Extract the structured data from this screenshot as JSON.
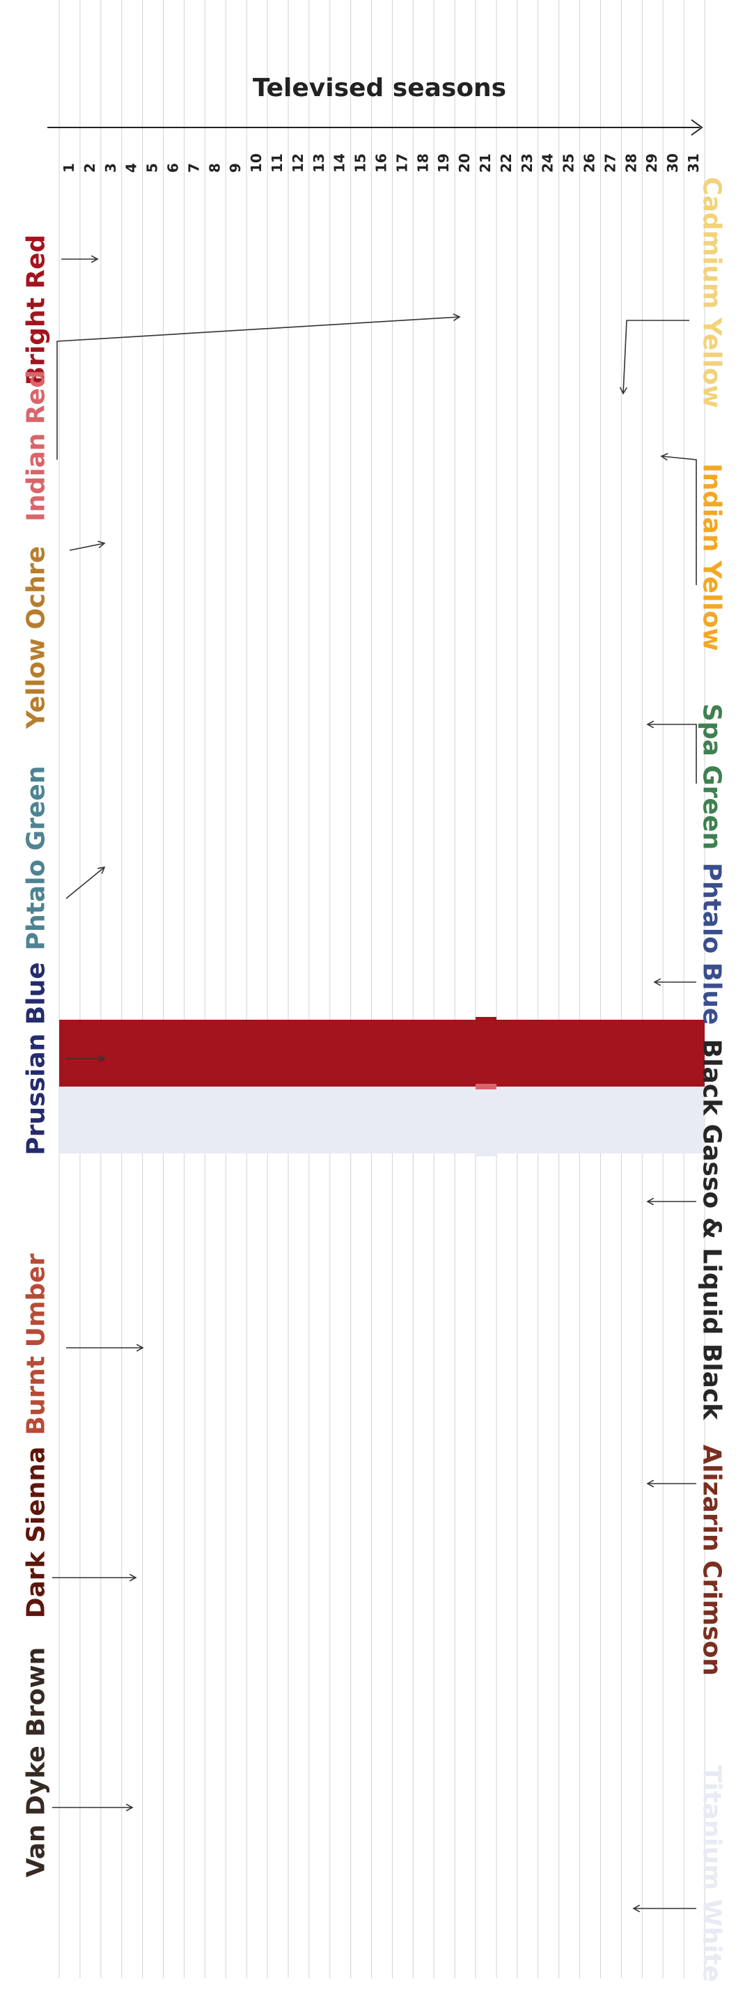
{
  "chart_data": {
    "type": "area",
    "title": "Televised seasons",
    "x": [
      1,
      2,
      3,
      4,
      5,
      6,
      7,
      8,
      9,
      10,
      11,
      12,
      13,
      14,
      15,
      16,
      17,
      18,
      19,
      20,
      21,
      22,
      23,
      24,
      25,
      26,
      27,
      28,
      29,
      30,
      31
    ],
    "series": [
      {
        "name": "Bright Red",
        "color": "#a3141e",
        "values": [
          12,
          12,
          12,
          12,
          12,
          12,
          12,
          12,
          12,
          12,
          12,
          12,
          12,
          12,
          12,
          12,
          12,
          12,
          12,
          12,
          12,
          12,
          12,
          12,
          12,
          12,
          12,
          12,
          12,
          12,
          12
        ]
      },
      {
        "name": "Cadmium Yellow",
        "color": "#f2d27a",
        "values": [
          0,
          0,
          0,
          0,
          0,
          0,
          0,
          0,
          0,
          0,
          0,
          0,
          0,
          0,
          0,
          0,
          0,
          0,
          0,
          0,
          0,
          0,
          0,
          0,
          0,
          0,
          0,
          0,
          0,
          0,
          0
        ]
      },
      {
        "name": "Indian Red",
        "color": "#d9656b",
        "values": [
          0,
          0,
          0,
          0,
          0,
          0,
          0,
          0,
          0,
          0,
          0,
          0,
          0,
          0,
          0,
          0,
          0,
          0,
          0,
          0,
          1,
          0,
          0,
          0,
          0,
          0,
          0,
          0,
          0,
          0,
          0
        ]
      },
      {
        "name": "Indian Yellow",
        "color": "#f3a724",
        "values": [
          0,
          0,
          0,
          0,
          0,
          0,
          0,
          0,
          0,
          0,
          0,
          0,
          0,
          0,
          0,
          0,
          0,
          0,
          0,
          0,
          0,
          0,
          0,
          0,
          0,
          0,
          0,
          0,
          0,
          0,
          0
        ]
      },
      {
        "name": "Yellow Ochre",
        "color": "#b87d2c",
        "values": [
          0,
          0,
          0,
          0,
          0,
          0,
          0,
          0,
          0,
          0,
          0,
          0,
          0,
          0,
          0,
          0,
          0,
          0,
          0,
          0,
          0,
          0,
          0,
          0,
          0,
          0,
          0,
          0,
          0,
          0,
          0
        ]
      },
      {
        "name": "Spa Green",
        "color": "#3f8050",
        "values": [
          0,
          0,
          0,
          0,
          0,
          0,
          0,
          0,
          0,
          0,
          0,
          0,
          0,
          0,
          0,
          0,
          0,
          0,
          0,
          0,
          0,
          0,
          0,
          0,
          0,
          0,
          0,
          0,
          0,
          0,
          0
        ]
      },
      {
        "name": "Phtalo Green",
        "color": "#4e8393",
        "values": [
          0,
          0,
          0,
          0,
          0,
          0,
          0,
          0,
          0,
          0,
          0,
          0,
          0,
          0,
          0,
          0,
          0,
          0,
          0,
          0,
          0,
          0,
          0,
          0,
          0,
          0,
          0,
          0,
          0,
          0,
          0
        ]
      },
      {
        "name": "Phtalo Blue",
        "color": "#3a4e8e",
        "values": [
          0,
          0,
          0,
          0,
          0,
          0,
          0,
          0,
          0,
          0,
          0,
          0,
          0,
          0,
          0,
          0,
          0,
          0,
          0,
          0,
          0,
          0,
          0,
          0,
          0,
          0,
          0,
          0,
          0,
          0,
          0
        ]
      },
      {
        "name": "Prussian Blue",
        "color": "#252b6c",
        "values": [
          0,
          0,
          0,
          0,
          0,
          0,
          0,
          0,
          0,
          0,
          0,
          0,
          0,
          0,
          0,
          0,
          0,
          0,
          0,
          0,
          0,
          0,
          0,
          0,
          0,
          0,
          0,
          0,
          0,
          0,
          0
        ]
      },
      {
        "name": "Black Gasso & Liquid Black",
        "color": "#262626",
        "values": [
          0,
          0,
          0,
          0,
          0,
          0,
          0,
          0,
          0,
          0,
          0,
          0,
          0,
          0,
          0,
          0,
          0,
          0,
          0,
          0,
          0,
          0,
          0,
          0,
          0,
          0,
          0,
          0,
          0,
          0,
          0
        ]
      },
      {
        "name": "Burnt Umber",
        "color": "#b84a36",
        "values": [
          0,
          0,
          0,
          0,
          0,
          0,
          0,
          0,
          0,
          0,
          0,
          0,
          0,
          0,
          0,
          0,
          0,
          0,
          0,
          0,
          0,
          0,
          0,
          0,
          0,
          0,
          0,
          0,
          0,
          0,
          0
        ]
      },
      {
        "name": "Alizarin Crimson",
        "color": "#7a2f20",
        "values": [
          0,
          0,
          0,
          0,
          0,
          0,
          0,
          0,
          0,
          0,
          0,
          0,
          0,
          0,
          0,
          0,
          0,
          0,
          0,
          0,
          0,
          0,
          0,
          0,
          0,
          0,
          0,
          0,
          0,
          0,
          0
        ]
      },
      {
        "name": "Dark Sienna",
        "color": "#5e160c",
        "values": [
          0,
          0,
          0,
          0,
          0,
          0,
          0,
          0,
          0,
          0,
          0,
          0,
          0,
          0,
          0,
          0,
          0,
          0,
          0,
          0,
          0,
          0,
          0,
          0,
          0,
          0,
          0,
          0,
          0,
          0,
          0
        ]
      },
      {
        "name": "Van Dyke Brown",
        "color": "#372a24",
        "values": [
          0,
          0,
          0,
          0,
          0,
          0,
          0,
          0,
          0,
          0,
          0,
          0,
          0,
          0,
          0,
          0,
          0,
          0,
          0,
          0,
          0,
          0,
          0,
          0,
          0,
          0,
          0,
          0,
          0,
          0,
          0
        ]
      },
      {
        "name": "Titanium White",
        "color": "#e8eaf4",
        "values": [
          12,
          12,
          12,
          12,
          12,
          12,
          12,
          12,
          12,
          12,
          12,
          12,
          12,
          12,
          12,
          12,
          12,
          12,
          12,
          12,
          12,
          12,
          12,
          12,
          12,
          12,
          12,
          12,
          12,
          12,
          12
        ]
      }
    ],
    "grid": true,
    "legend": "direct-labels"
  }
}
